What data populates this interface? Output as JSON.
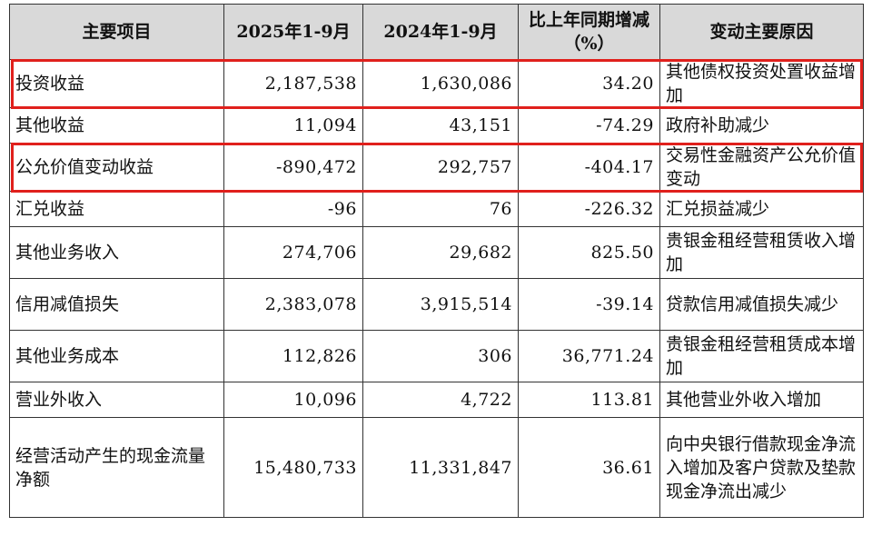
{
  "headers": {
    "item": "主要项目",
    "current": "2025年1-9月",
    "previous": "2024年1-9月",
    "change": "比上年同期增减（%）",
    "reason": "变动主要原因"
  },
  "rows": [
    {
      "item": "投资收益",
      "current": "2,187,538",
      "previous": "1,630,086",
      "change": "34.20",
      "reason": "其他债权投资处置收益增加",
      "highlighted": true
    },
    {
      "item": "其他收益",
      "current": "11,094",
      "previous": "43,151",
      "change": "-74.29",
      "reason": "政府补助减少",
      "highlighted": false
    },
    {
      "item": "公允价值变动收益",
      "current": "-890,472",
      "previous": "292,757",
      "change": "-404.17",
      "reason": "交易性金融资产公允价值变动",
      "highlighted": true
    },
    {
      "item": "汇兑收益",
      "current": "-96",
      "previous": "76",
      "change": "-226.32",
      "reason": "汇兑损益减少",
      "highlighted": false
    },
    {
      "item": "其他业务收入",
      "current": "274,706",
      "previous": "29,682",
      "change": "825.50",
      "reason": "贵银金租经营租赁收入增加",
      "highlighted": false
    },
    {
      "item": "信用减值损失",
      "current": "2,383,078",
      "previous": "3,915,514",
      "change": "-39.14",
      "reason": "贷款信用减值损失减少",
      "highlighted": false
    },
    {
      "item": "其他业务成本",
      "current": "112,826",
      "previous": "306",
      "change": "36,771.24",
      "reason": "贵银金租经营租赁成本增加",
      "highlighted": false
    },
    {
      "item": "营业外收入",
      "current": "10,096",
      "previous": "4,722",
      "change": "113.81",
      "reason": "其他营业外收入增加",
      "highlighted": false
    },
    {
      "item": "经营活动产生的现金流量净额",
      "current": "15,480,733",
      "previous": "11,331,847",
      "change": "36.61",
      "reason": "向中央银行借款现金净流入增加及客户贷款及垫款现金净流出减少",
      "highlighted": false
    }
  ],
  "highlight_color": "#e0201c",
  "header_background": "#d9d9d9"
}
